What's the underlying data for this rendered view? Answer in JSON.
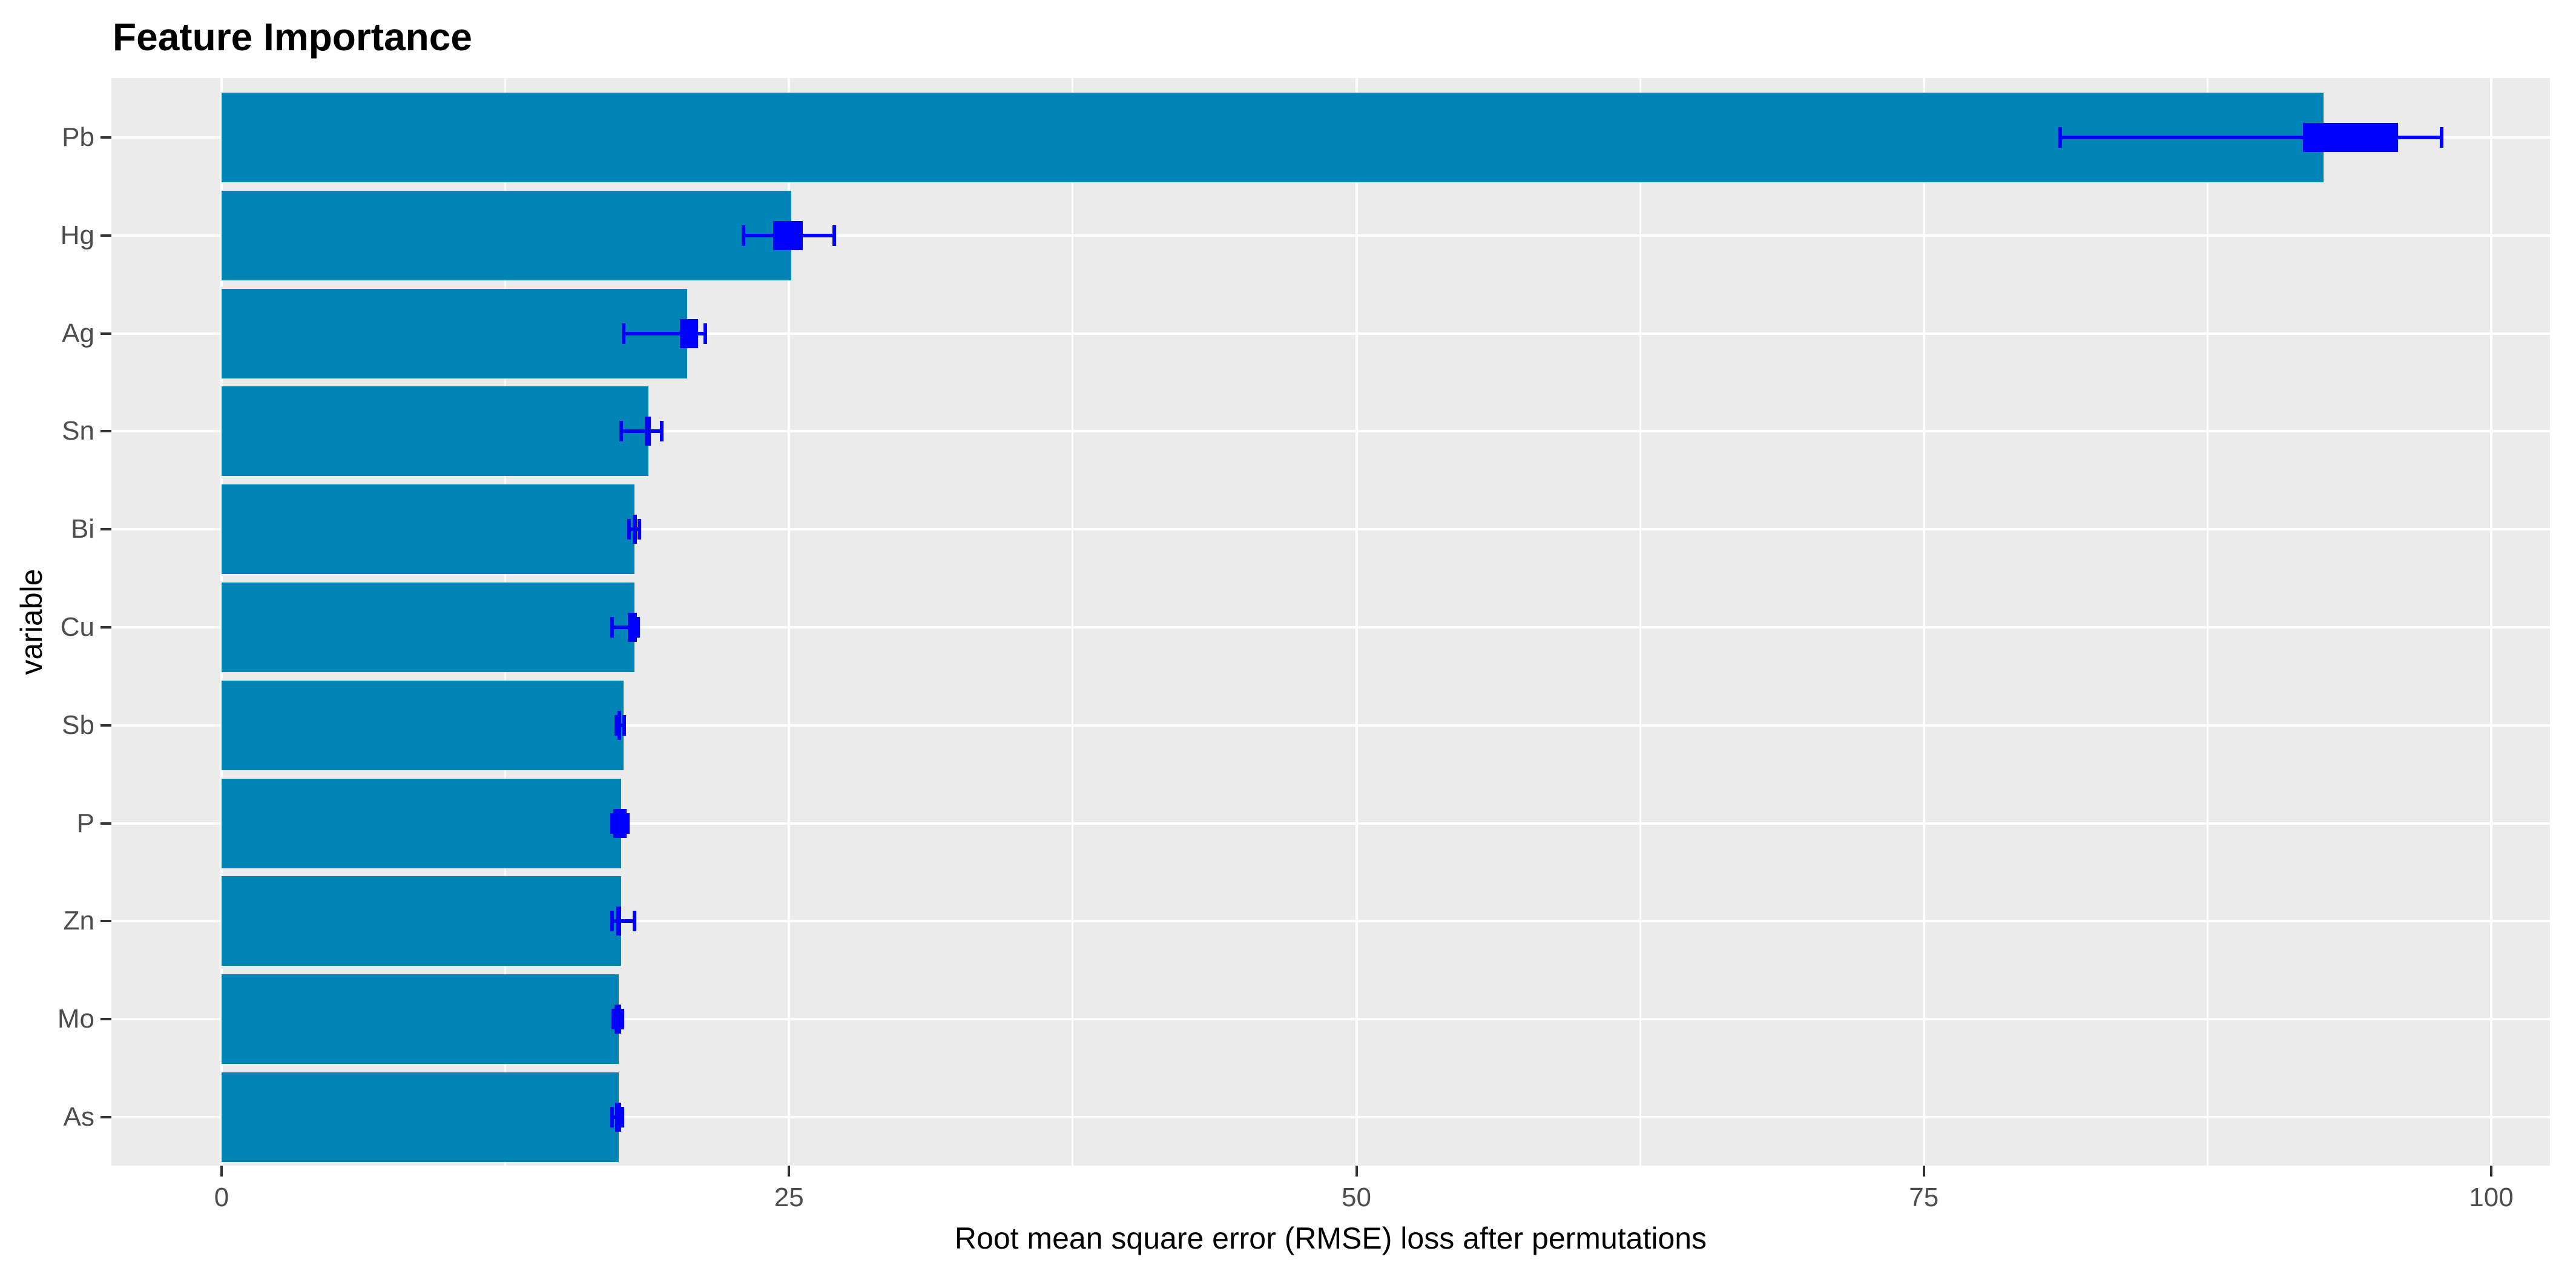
{
  "page_title": "Feature Importance",
  "chart_data": {
    "type": "bar",
    "orientation": "horizontal",
    "title": "Feature Importance",
    "xlabel": "Root mean square error (RMSE) loss after permutations",
    "ylabel": "variable",
    "xlim": [
      0,
      100
    ],
    "x_major_ticks": [
      0,
      25,
      50,
      75,
      100
    ],
    "x_tick_labels": [
      "0",
      "25",
      "50",
      "75",
      "100"
    ],
    "x_minor_gridlines": [
      12.5,
      37.5,
      62.5,
      87.5
    ],
    "grid": true,
    "legend_position": "none",
    "categories": [
      "Pb",
      "Hg",
      "Ag",
      "Sn",
      "Bi",
      "Cu",
      "Sb",
      "P",
      "Zn",
      "Mo",
      "As"
    ],
    "values": [
      92.6,
      25.1,
      20.5,
      18.8,
      18.2,
      18.2,
      17.7,
      17.6,
      17.6,
      17.5,
      17.5
    ],
    "boxplots": [
      {
        "low": 81.0,
        "q1": 91.7,
        "q3": 95.9,
        "high": 97.8
      },
      {
        "low": 23.0,
        "q1": 24.3,
        "q3": 25.6,
        "high": 27.0
      },
      {
        "low": 17.7,
        "q1": 20.2,
        "q3": 21.0,
        "high": 21.3
      },
      {
        "low": 17.6,
        "q1": 18.65,
        "q3": 18.9,
        "high": 19.4
      },
      {
        "low": 17.95,
        "q1": 18.1,
        "q3": 18.3,
        "high": 18.4
      },
      {
        "low": 17.2,
        "q1": 17.9,
        "q3": 18.3,
        "high": 18.35
      },
      {
        "low": 17.4,
        "q1": 17.45,
        "q3": 17.6,
        "high": 17.75
      },
      {
        "low": 17.2,
        "q1": 17.25,
        "q3": 17.85,
        "high": 17.9
      },
      {
        "low": 17.2,
        "q1": 17.4,
        "q3": 17.6,
        "high": 18.2
      },
      {
        "low": 17.25,
        "q1": 17.3,
        "q3": 17.6,
        "high": 17.65
      },
      {
        "low": 17.2,
        "q1": 17.35,
        "q3": 17.6,
        "high": 17.65
      }
    ],
    "colors": {
      "bar": "#0084B8",
      "box": "#0000FF",
      "panel_bg": "#EBEBEB",
      "grid": "#FFFFFF",
      "tick": "#333333",
      "tick_label": "#4D4D4D",
      "text": "#000000",
      "background": "#FFFFFF"
    }
  }
}
